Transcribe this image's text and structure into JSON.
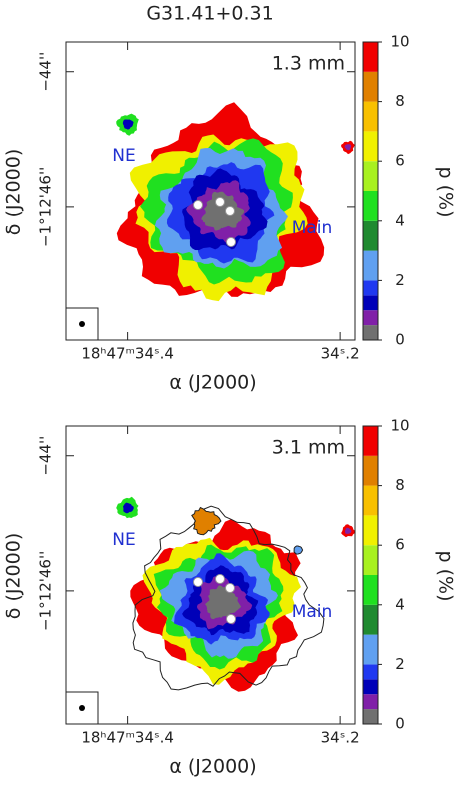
{
  "chart_data": [
    {
      "type": "map",
      "title": "G31.41+0.31",
      "panel_label": "1.3 mm",
      "annotations": [
        "NE",
        "Main"
      ],
      "xlabel": "α (J2000)",
      "ylabel": "δ (J2000)",
      "xlim": [
        34.458,
        34.186
      ],
      "ylim": [
        -47.97,
        -43.56
      ],
      "xticks": [
        {
          "value": 34.4,
          "label": "18ʰ47ᵐ34ˢ.4"
        },
        {
          "value": 34.2,
          "label": "34ˢ.2"
        }
      ],
      "yticks": [
        {
          "value": -44,
          "label": "−44''"
        },
        {
          "value": -46,
          "label": "−1°12'46''"
        }
      ],
      "colorbar": {
        "label": "p (%)",
        "lim": [
          0,
          10
        ],
        "ticks": [
          0,
          2,
          4,
          6,
          8,
          10
        ],
        "levels": [
          0,
          0.5,
          1,
          1.5,
          2,
          3,
          4,
          5,
          6,
          7,
          8,
          9,
          10
        ],
        "colors": [
          "#707070",
          "#8020a8",
          "#0000b8",
          "#2038f0",
          "#60a0f0",
          "#208a30",
          "#20e020",
          "#a8f020",
          "#f0f000",
          "#f8c000",
          "#e08000",
          "#f00000"
        ]
      }
    },
    {
      "type": "map",
      "panel_label": "3.1 mm",
      "annotations": [
        "NE",
        "Main"
      ],
      "xlabel": "α (J2000)",
      "ylabel": "δ (J2000)",
      "xlim": [
        34.458,
        34.186
      ],
      "ylim": [
        -47.97,
        -43.56
      ],
      "xticks": [
        {
          "value": 34.4,
          "label": "18ʰ47ᵐ34ˢ.4"
        },
        {
          "value": 34.2,
          "label": "34ˢ.2"
        }
      ],
      "yticks": [
        {
          "value": -44,
          "label": "−44''"
        },
        {
          "value": -46,
          "label": "−1°12'46''"
        }
      ],
      "colorbar": {
        "label": "p (%)",
        "lim": [
          0,
          10
        ],
        "ticks": [
          0,
          2,
          4,
          6,
          8,
          10
        ],
        "levels": [
          0,
          0.5,
          1,
          1.5,
          2,
          3,
          4,
          5,
          6,
          7,
          8,
          9,
          10
        ],
        "colors": [
          "#707070",
          "#8020a8",
          "#0000b8",
          "#2038f0",
          "#60a0f0",
          "#208a30",
          "#20e020",
          "#a8f020",
          "#f0f000",
          "#f8c000",
          "#e08000",
          "#f00000"
        ]
      }
    }
  ]
}
